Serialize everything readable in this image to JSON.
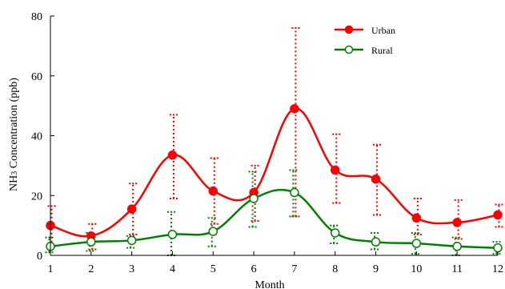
{
  "chart_data": {
    "type": "line",
    "title": "",
    "xlabel": "Month",
    "ylabel_main": "NH",
    "ylabel_sub": "3",
    "ylabel_rest": " Concentration (ppb)",
    "x": [
      1,
      2,
      3,
      4,
      5,
      6,
      7,
      8,
      9,
      10,
      11,
      12
    ],
    "x_tick_labels": [
      "1",
      "2",
      "3",
      "4",
      "5",
      "6",
      "7",
      "8",
      "9",
      "10",
      "11",
      "12"
    ],
    "xlim": [
      1,
      12
    ],
    "ylim": [
      0,
      80
    ],
    "y_ticks": [
      0,
      20,
      40,
      60,
      80
    ],
    "grid": false,
    "legend_position": "top-right",
    "series": [
      {
        "name": "Urban",
        "color": "#ff0000",
        "marker": "filled-circle",
        "values": [
          10.0,
          6.5,
          15.5,
          33.5,
          21.5,
          21.0,
          49.0,
          28.5,
          25.5,
          12.5,
          11.0,
          13.5
        ],
        "err_low": [
          3.0,
          2.0,
          7.0,
          19.0,
          10.5,
          11.5,
          13.0,
          17.5,
          13.5,
          7.0,
          5.5,
          9.5
        ],
        "err_high": [
          16.5,
          10.5,
          24.0,
          47.0,
          32.5,
          30.0,
          76.0,
          40.5,
          37.0,
          19.0,
          18.5,
          17.0
        ]
      },
      {
        "name": "Rural",
        "color": "#008000",
        "marker": "open-circle",
        "values": [
          3.0,
          4.5,
          5.0,
          7.0,
          8.0,
          19.0,
          21.0,
          7.5,
          4.5,
          4.0,
          3.0,
          2.5
        ],
        "err_low": [
          1.0,
          1.5,
          2.5,
          0.0,
          3.0,
          9.5,
          13.0,
          4.0,
          2.0,
          0.5,
          0.0,
          0.5
        ],
        "err_high": [
          6.0,
          7.5,
          6.5,
          14.5,
          12.5,
          28.0,
          28.5,
          10.0,
          7.5,
          7.5,
          6.0,
          4.5
        ]
      }
    ]
  }
}
